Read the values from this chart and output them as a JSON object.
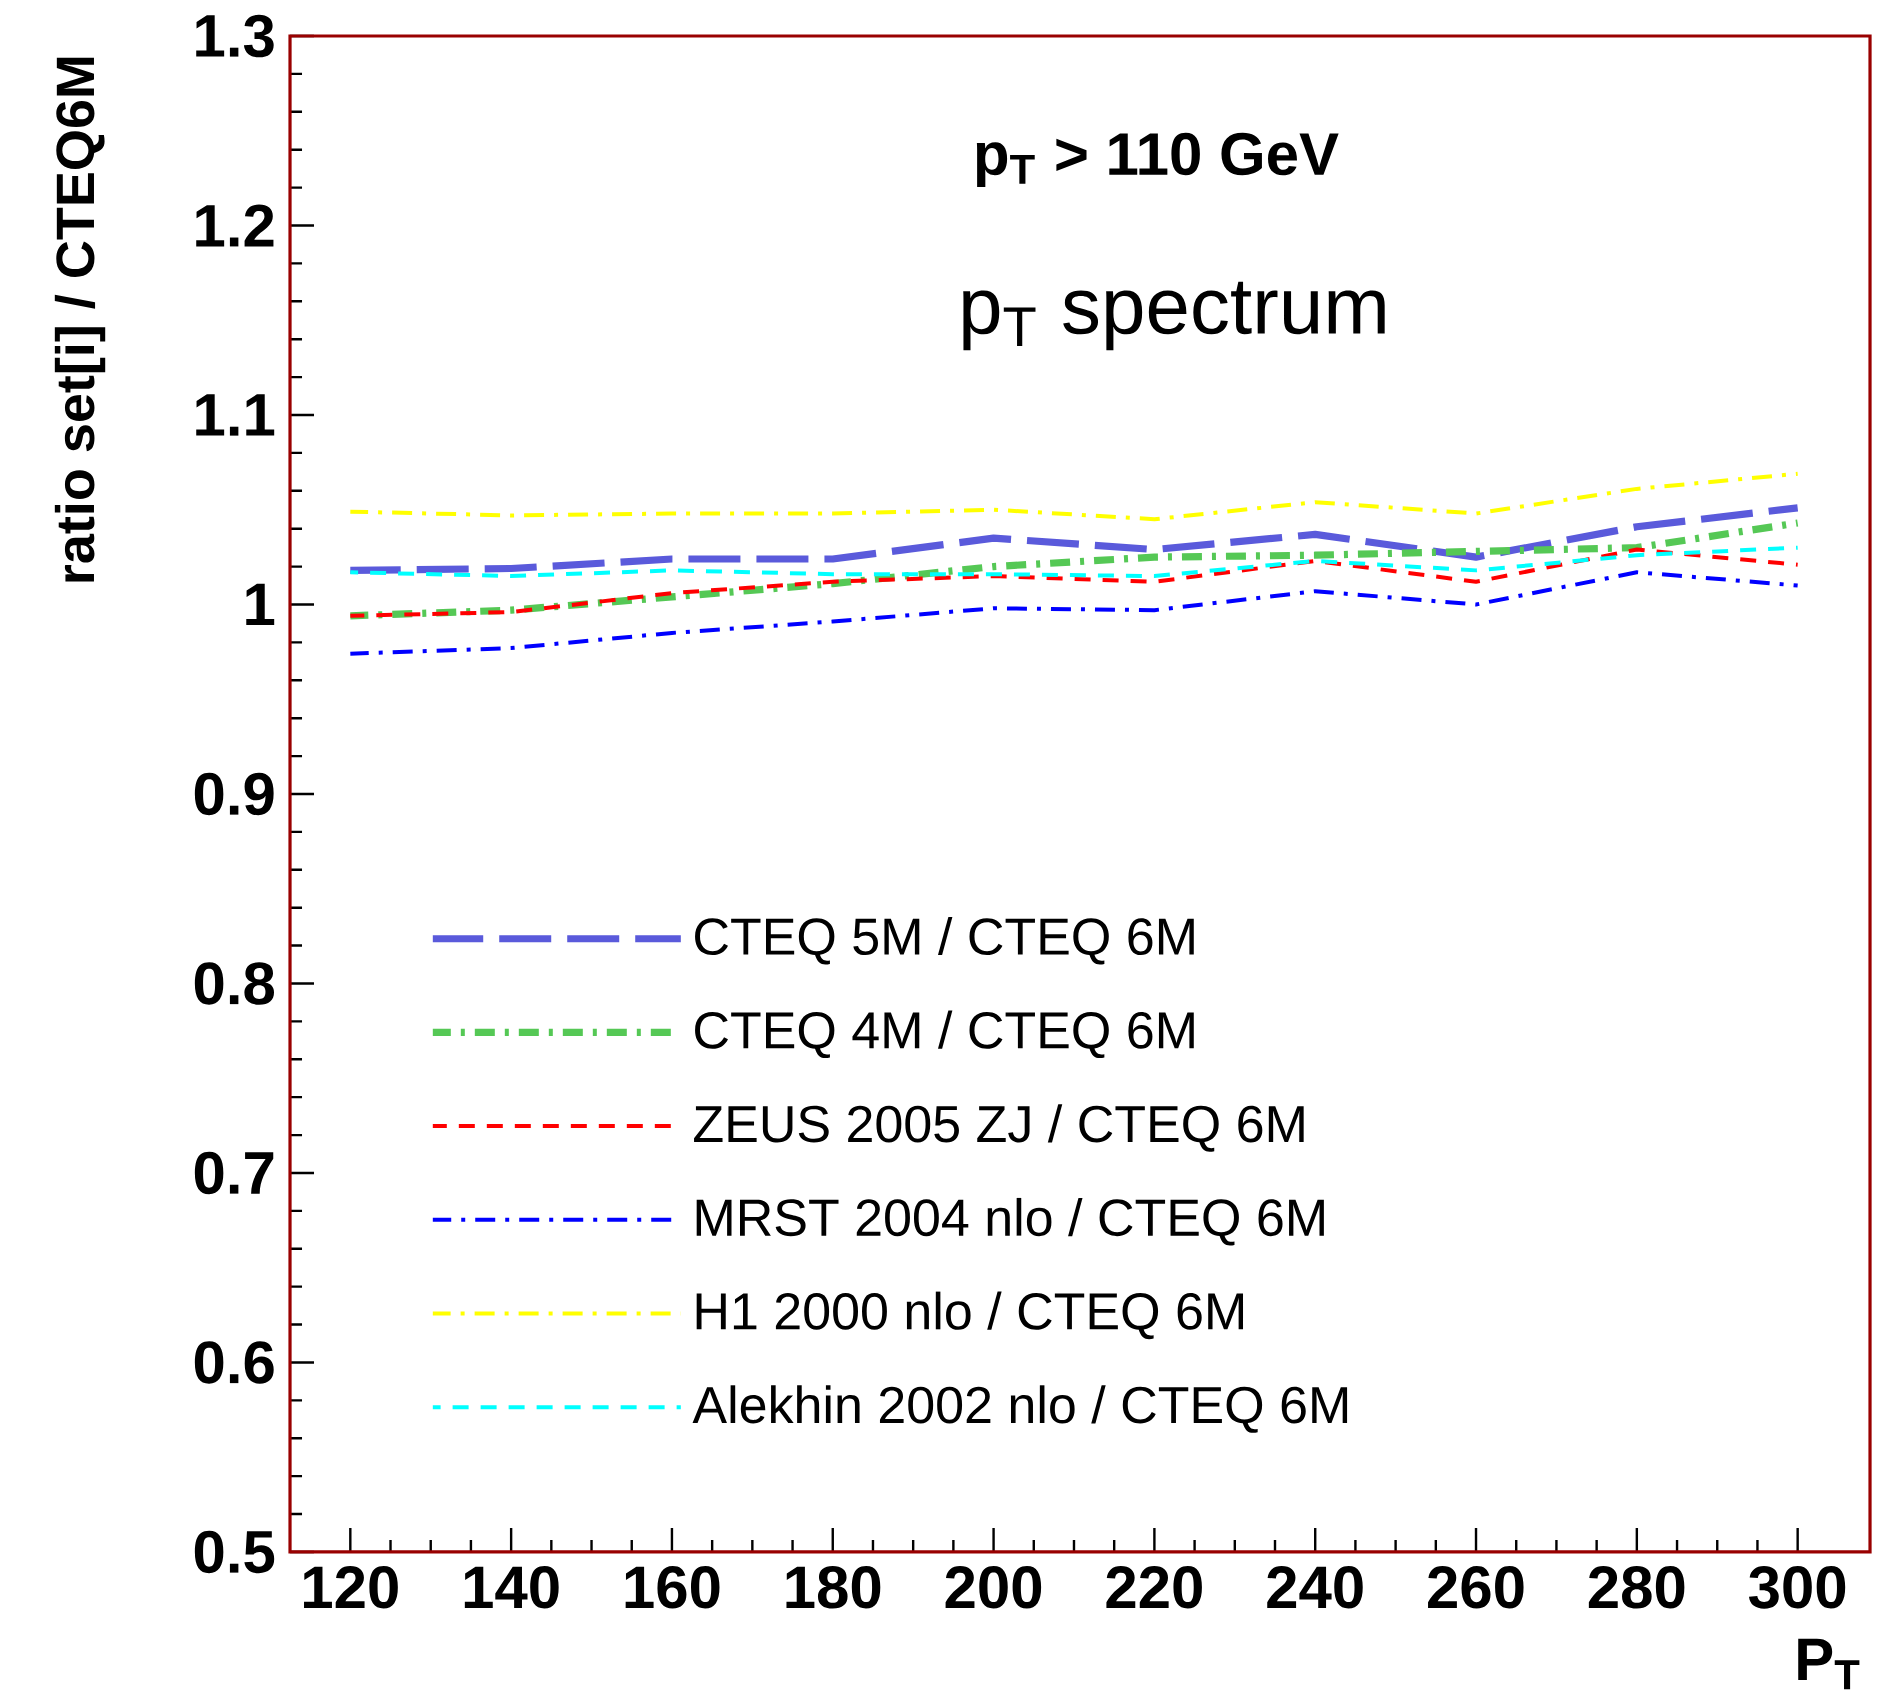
{
  "chart_data": {
    "type": "line",
    "title": "**p$_{T}$ > 110 GeV**",
    "subtitle": "p$_{T}$ spectrum",
    "xlabel": "P$_{T}$",
    "ylabel": "ratio set[i] / CTEQ6M",
    "x": [
      120,
      140,
      160,
      180,
      200,
      220,
      240,
      260,
      280,
      300
    ],
    "series": [
      {
        "name": "CTEQ 5M / CTEQ 6M",
        "color": "#5a5adb",
        "line_style": "longdash",
        "values": [
          1.018,
          1.019,
          1.024,
          1.024,
          1.035,
          1.029,
          1.037,
          1.025,
          1.041,
          1.051
        ]
      },
      {
        "name": "CTEQ 4M / CTEQ 6M",
        "color": "#55c855",
        "line_style": "dashdot",
        "values": [
          0.994,
          0.997,
          1.004,
          1.011,
          1.02,
          1.025,
          1.026,
          1.028,
          1.03,
          1.043
        ]
      },
      {
        "name": "ZEUS 2005 ZJ / CTEQ 6M",
        "color": "#ff0000",
        "line_style": "dashed",
        "values": [
          0.994,
          0.996,
          1.006,
          1.012,
          1.015,
          1.012,
          1.023,
          1.012,
          1.029,
          1.021
        ]
      },
      {
        "name": "MRST 2004 nlo / CTEQ 6M",
        "color": "#0000ff",
        "line_style": "dashdot",
        "values": [
          0.974,
          0.977,
          0.985,
          0.991,
          0.998,
          0.997,
          1.007,
          1.0,
          1.017,
          1.01
        ]
      },
      {
        "name": "H1 2000 nlo / CTEQ 6M",
        "color": "#ffff00",
        "line_style": "dashdot",
        "values": [
          1.049,
          1.047,
          1.048,
          1.048,
          1.05,
          1.045,
          1.054,
          1.048,
          1.061,
          1.069
        ]
      },
      {
        "name": "Alekhin 2002 nlo / CTEQ 6M",
        "color": "#00ffff",
        "line_style": "dashed",
        "values": [
          1.017,
          1.015,
          1.018,
          1.016,
          1.016,
          1.015,
          1.023,
          1.018,
          1.026,
          1.03
        ]
      }
    ],
    "xlim": [
      112.5,
      309
    ],
    "ylim": [
      0.5,
      1.3
    ],
    "xticks": [
      120,
      140,
      160,
      180,
      200,
      220,
      240,
      260,
      280,
      300
    ],
    "yticks": [
      0.5,
      0.6,
      0.7,
      0.8,
      0.9,
      1,
      1.1,
      1.2,
      1.3
    ],
    "legend": "bottom left",
    "grid": false
  }
}
